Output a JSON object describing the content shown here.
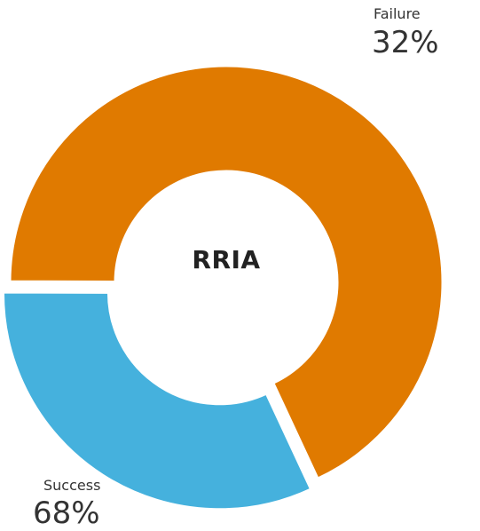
{
  "chart_data": {
    "type": "pie",
    "title": "",
    "center_label": "RRIA",
    "slices": [
      {
        "label": "Failure",
        "value": 32,
        "display": "32%",
        "color": "#45B1DD"
      },
      {
        "label": "Success",
        "value": 68,
        "display": "68%",
        "color": "#E07A00"
      }
    ]
  }
}
